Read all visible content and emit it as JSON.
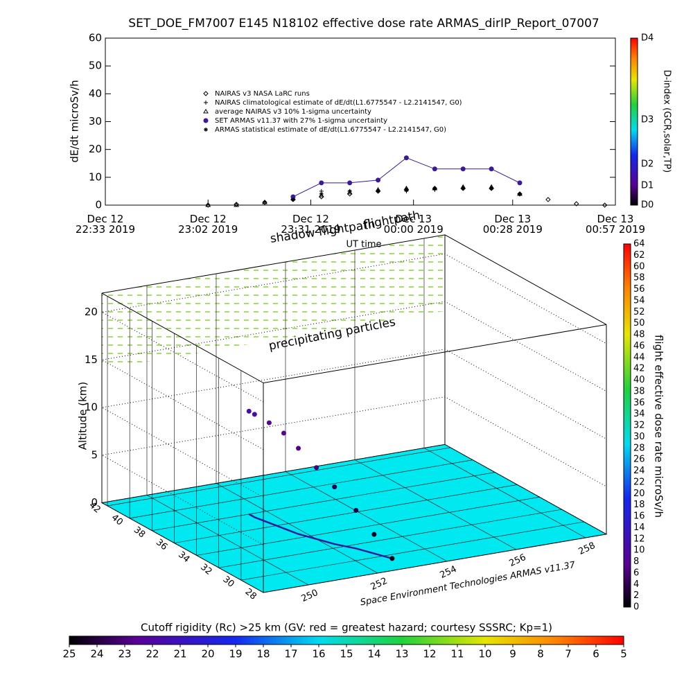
{
  "chart_data": [
    {
      "type": "line",
      "title": "SET_DOE_FM7007  E145 N18102 effective dose rate ARMAS_dirIP_Report_07007",
      "y_label": "dE/dt microSv/h",
      "ylim": [
        0,
        60
      ],
      "yticks": [
        0,
        10,
        20,
        30,
        40,
        50,
        60
      ],
      "xlim": [
        "2019-12-12 22:33",
        "2019-12-13 00:57"
      ],
      "xticks": [
        {
          "value": "2019-12-12 22:33",
          "label": "Dec 12\n22:33 2019"
        },
        {
          "value": "2019-12-12 23:02",
          "label": "Dec 12\n23:02 2019"
        },
        {
          "value": "2019-12-12 23:31",
          "label": "Dec 12\n23:31 2019"
        },
        {
          "value": "2019-12-13 00:00",
          "label": "Dec 13\n00:00 2019"
        },
        {
          "value": "2019-12-13 00:28",
          "label": "Dec 13\n00:28 2019"
        },
        {
          "value": "2019-12-13 00:57",
          "label": "Dec 13\n00:57 2019"
        }
      ],
      "x": [
        "2019-12-12 23:02",
        "2019-12-12 23:10",
        "2019-12-12 23:18",
        "2019-12-12 23:26",
        "2019-12-12 23:34",
        "2019-12-12 23:42",
        "2019-12-12 23:50",
        "2019-12-12 23:58",
        "2019-12-13 00:06",
        "2019-12-13 00:14",
        "2019-12-13 00:22",
        "2019-12-13 00:30",
        "2019-12-13 00:38",
        "2019-12-13 00:46",
        "2019-12-13 00:54"
      ],
      "series": [
        {
          "name": "NAIRAS v3 NASA LaRC runs",
          "marker": "diamond",
          "color": "#000000",
          "values": [
            0,
            0.3,
            1,
            2,
            3,
            4,
            5,
            5.5,
            6,
            6,
            6,
            4,
            2,
            0.5,
            0
          ]
        },
        {
          "name": "NAIRAS climatological estimate of dE/dt(L1.6775547 - L2.2141547, G0)",
          "marker": "plus",
          "color": "#000000",
          "values": [
            null,
            null,
            1,
            3,
            5,
            5,
            5,
            5,
            5.5,
            6,
            6,
            null,
            null,
            null,
            null
          ]
        },
        {
          "name": "average NAIRAS v3 10% 1-sigma uncertainty",
          "marker": "triangle",
          "color": "#000000",
          "values": [
            0,
            0,
            1,
            2.5,
            3.5,
            4.5,
            5.5,
            6,
            6,
            6.5,
            6.5,
            4,
            null,
            null,
            null
          ]
        },
        {
          "name": "SET ARMAS v11.37 with 27% 1-sigma uncertainty",
          "marker": "circle",
          "color": "#3a1a9a",
          "line": true,
          "values": [
            null,
            null,
            null,
            3,
            8,
            8,
            9,
            17,
            13,
            13,
            13,
            8,
            null,
            null,
            null
          ]
        },
        {
          "name": "ARMAS statistical estimate of dE/dt(L1.6775547 - L2.2141547, G0)",
          "marker": "asterisk",
          "color": "#000000",
          "values": [
            null,
            null,
            null,
            2,
            4,
            5,
            5,
            5.5,
            6,
            6,
            6,
            4,
            null,
            null,
            null
          ]
        }
      ],
      "colorbar": {
        "title": "D-index (GCR,solar,TP)",
        "ticks": [
          "D0",
          "D1",
          "D2",
          "D3",
          "D4"
        ]
      }
    },
    {
      "type": "flight3d",
      "annotations": [
        "shadow flightpath",
        "UT time",
        "precipitating particles"
      ],
      "credit": "Space Environment Technologies ARMAS v11.37",
      "z_label": "Altitude (km)",
      "zlim": [
        0,
        22
      ],
      "zticks": [
        0,
        5,
        10,
        15,
        20
      ],
      "xlim": [
        248.7,
        258.6
      ],
      "xticks": [
        250,
        252,
        254,
        256,
        258
      ],
      "ylim": [
        28,
        42.5
      ],
      "yticks": [
        28,
        30,
        32,
        34,
        36,
        38,
        40,
        42
      ],
      "floor_color": "#00e8f0",
      "flightpath": {
        "name": "flightpath",
        "lon": [
          252.9,
          252.7,
          252.5,
          252.2,
          252.0,
          251.8,
          251.7,
          251.6,
          251.5,
          251.5
        ],
        "lat": [
          29.5,
          30.5,
          31.5,
          32.5,
          33.5,
          34.5,
          35.5,
          36.5,
          37.5,
          38.0
        ],
        "alt": [
          0,
          2,
          4,
          6,
          7.5,
          9,
          10,
          10.5,
          10.8,
          10.8
        ],
        "dose": [
          1,
          2,
          3,
          4,
          6,
          7,
          8,
          9,
          10,
          10
        ]
      },
      "colorbar": {
        "title": "flight effective dose rate microSv/h",
        "lim": [
          0,
          64
        ],
        "ticks": [
          0,
          2,
          4,
          6,
          8,
          10,
          12,
          14,
          16,
          18,
          20,
          22,
          24,
          26,
          28,
          30,
          32,
          34,
          36,
          38,
          40,
          42,
          44,
          46,
          48,
          50,
          52,
          54,
          56,
          58,
          60,
          62,
          64
        ]
      }
    },
    {
      "type": "colorbar",
      "title": "Cutoff rigidity (Rc) >25 km (GV: red = greatest hazard; courtesy SSSRC; Kp=1)",
      "xlim": [
        25,
        5
      ],
      "xticks": [
        25,
        24,
        23,
        22,
        21,
        20,
        19,
        18,
        17,
        16,
        15,
        14,
        13,
        12,
        11,
        10,
        9,
        8,
        7,
        6,
        5
      ]
    }
  ]
}
